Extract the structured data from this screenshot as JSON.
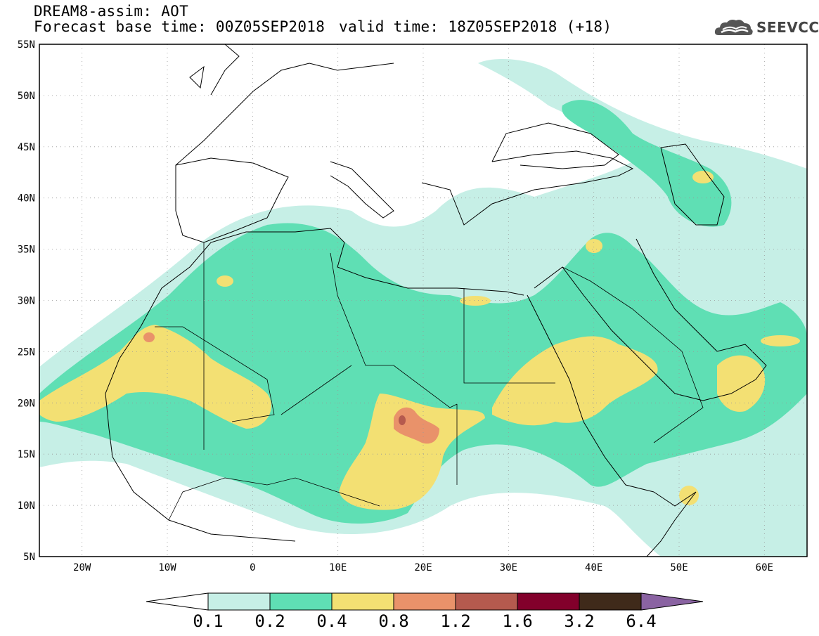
{
  "header": {
    "title": "DREAM8-assim: AOT",
    "base_time": "Forecast base time: 00Z05SEP2018",
    "valid_time": "valid time: 18Z05SEP2018 (+18)",
    "logo_text": "SEEVCCC"
  },
  "map": {
    "lon_range": [
      -25,
      65
    ],
    "lat_range": [
      5,
      55
    ],
    "lat_labels": [
      "55N",
      "50N",
      "45N",
      "40N",
      "35N",
      "30N",
      "25N",
      "20N",
      "15N",
      "10N",
      "5N"
    ],
    "lon_labels": [
      "20W",
      "10W",
      "0",
      "10E",
      "20E",
      "30E",
      "40E",
      "50E",
      "60E"
    ],
    "gridlines": "dotted"
  },
  "colorbar": {
    "levels": [
      "0.1",
      "0.2",
      "0.4",
      "0.8",
      "1.2",
      "1.6",
      "3.2",
      "6.4"
    ],
    "colors": [
      "#ffffff",
      "#c6efe6",
      "#5fdfb4",
      "#f3e073",
      "#e9926a",
      "#b55a4e",
      "#82002b",
      "#3f2a1a",
      "#8a63a2"
    ]
  }
}
